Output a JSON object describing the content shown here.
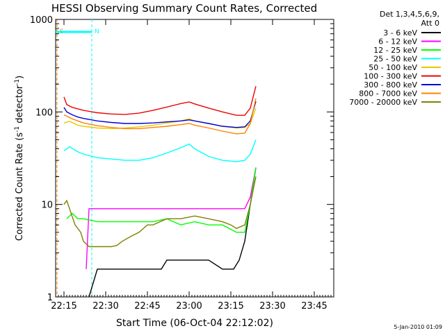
{
  "chart_data": {
    "type": "line",
    "title": "HESSI Observing Summary Count Rates, Corrected",
    "xlabel": "Start Time (06-Oct-04 22:12:02)",
    "ylabel_main": "Corrected Count Rate (s",
    "ylabel_sup1": "-1",
    "ylabel_mid": " detector",
    "ylabel_sup2": "-1",
    "ylabel_end": ")",
    "y_scale": "log",
    "ylim": [
      1,
      1000
    ],
    "xlim_minutes": [
      0,
      100
    ],
    "x_ticks": [
      {
        "m": 3,
        "label": "22:15"
      },
      {
        "m": 18,
        "label": "22:30"
      },
      {
        "m": 33,
        "label": "22:45"
      },
      {
        "m": 48,
        "label": "23:00"
      },
      {
        "m": 63,
        "label": "23:15"
      },
      {
        "m": 78,
        "label": "23:30"
      },
      {
        "m": 93,
        "label": "23:45"
      }
    ],
    "y_ticks": [
      {
        "v": 1,
        "label": "1"
      },
      {
        "v": 10,
        "label": "10"
      },
      {
        "v": 100,
        "label": "100"
      },
      {
        "v": 1000,
        "label": "1000"
      }
    ],
    "legend_header": [
      "Det 1,3,4,5,6,9,",
      "Att 0"
    ],
    "series": [
      {
        "name": "3 - 6 keV",
        "color": "#000000",
        "x": [
          0,
          10,
          12,
          15,
          20,
          30,
          38,
          40,
          45,
          50,
          55,
          60,
          64,
          66,
          68,
          70,
          72
        ],
        "y": [
          null,
          null,
          1,
          2,
          2,
          2,
          2,
          2.5,
          2.5,
          2.5,
          2.5,
          2,
          2,
          2.5,
          4,
          10,
          25
        ]
      },
      {
        "name": "6 - 12 keV",
        "color": "#ff00ff",
        "x": [
          0,
          10,
          11,
          12,
          20,
          30,
          40,
          50,
          60,
          66,
          68,
          70,
          72
        ],
        "y": [
          null,
          null,
          2,
          9,
          9,
          9,
          9,
          9,
          9,
          9,
          9,
          12,
          25
        ]
      },
      {
        "name": "12 - 25 keV",
        "color": "#00ff00",
        "x": [
          0,
          4,
          6,
          8,
          10,
          15,
          20,
          25,
          30,
          35,
          40,
          45,
          50,
          55,
          60,
          65,
          68,
          70,
          72
        ],
        "y": [
          null,
          7,
          8,
          7,
          7,
          6.5,
          6.5,
          6.5,
          6.5,
          6.5,
          7,
          6,
          6.5,
          6,
          6,
          5,
          5,
          10,
          25
        ]
      },
      {
        "name": "25 - 50 keV",
        "color": "#00ffff",
        "x": [
          3,
          5,
          8,
          10,
          15,
          20,
          25,
          30,
          35,
          40,
          45,
          48,
          50,
          55,
          60,
          65,
          68,
          70,
          72
        ],
        "y": [
          38,
          42,
          37,
          35,
          32,
          31,
          30,
          30,
          32,
          36,
          41,
          45,
          40,
          33,
          30,
          29,
          30,
          35,
          50
        ]
      },
      {
        "name": "50 - 100 keV",
        "color": "#e6c800",
        "x": [
          3,
          5,
          8,
          10,
          15,
          20,
          25,
          30,
          35,
          40,
          45,
          48,
          50,
          55,
          60,
          65,
          68,
          70,
          72
        ],
        "y": [
          76,
          79,
          72,
          70,
          67,
          66,
          67,
          69,
          72,
          76,
          80,
          84,
          80,
          75,
          70,
          67,
          68,
          75,
          110
        ]
      },
      {
        "name": "100 - 300 keV",
        "color": "#ee0000",
        "x": [
          3,
          4,
          6,
          8,
          10,
          15,
          20,
          25,
          30,
          35,
          40,
          45,
          48,
          50,
          55,
          60,
          65,
          68,
          70,
          72
        ],
        "y": [
          145,
          120,
          112,
          108,
          104,
          98,
          95,
          94,
          97,
          104,
          113,
          123,
          128,
          122,
          110,
          100,
          92,
          92,
          110,
          190
        ]
      },
      {
        "name": "300 - 800 keV",
        "color": "#0000dd",
        "x": [
          3,
          4,
          6,
          8,
          10,
          15,
          20,
          25,
          30,
          35,
          40,
          45,
          48,
          50,
          55,
          60,
          65,
          68,
          70,
          72
        ],
        "y": [
          112,
          100,
          93,
          88,
          85,
          80,
          77,
          75,
          75,
          76,
          78,
          80,
          82,
          80,
          75,
          70,
          68,
          69,
          80,
          130
        ]
      },
      {
        "name": "800 - 7000 keV",
        "color": "#ff8000",
        "x": [
          3,
          4,
          6,
          8,
          10,
          15,
          20,
          25,
          30,
          35,
          40,
          45,
          48,
          50,
          55,
          60,
          65,
          68,
          70,
          72
        ],
        "y": [
          93,
          90,
          84,
          80,
          76,
          71,
          68,
          66,
          66,
          68,
          70,
          73,
          75,
          72,
          67,
          62,
          58,
          59,
          75,
          140
        ]
      },
      {
        "name": "7000 - 20000 keV",
        "color": "#808000",
        "x": [
          3,
          4,
          5,
          7,
          9,
          10,
          12,
          15,
          18,
          20,
          22,
          24,
          27,
          30,
          33,
          35,
          40,
          45,
          50,
          55,
          60,
          63,
          65,
          68,
          70,
          72
        ],
        "y": [
          10,
          11,
          9,
          6,
          5,
          4,
          3.5,
          3.5,
          3.5,
          3.5,
          3.6,
          4,
          4.5,
          5,
          6,
          6,
          7,
          7,
          7.5,
          7,
          6.5,
          6,
          5.5,
          6,
          10,
          20
        ]
      }
    ],
    "time_bars": [
      {
        "label": "S",
        "color": "#ff8000",
        "m0": 0,
        "m1": 0.5
      },
      {
        "label": "N",
        "color": "#00ffff",
        "m0": 0,
        "m1": 13
      }
    ],
    "footer_stamp": "5-Jan-2010 01:09"
  }
}
